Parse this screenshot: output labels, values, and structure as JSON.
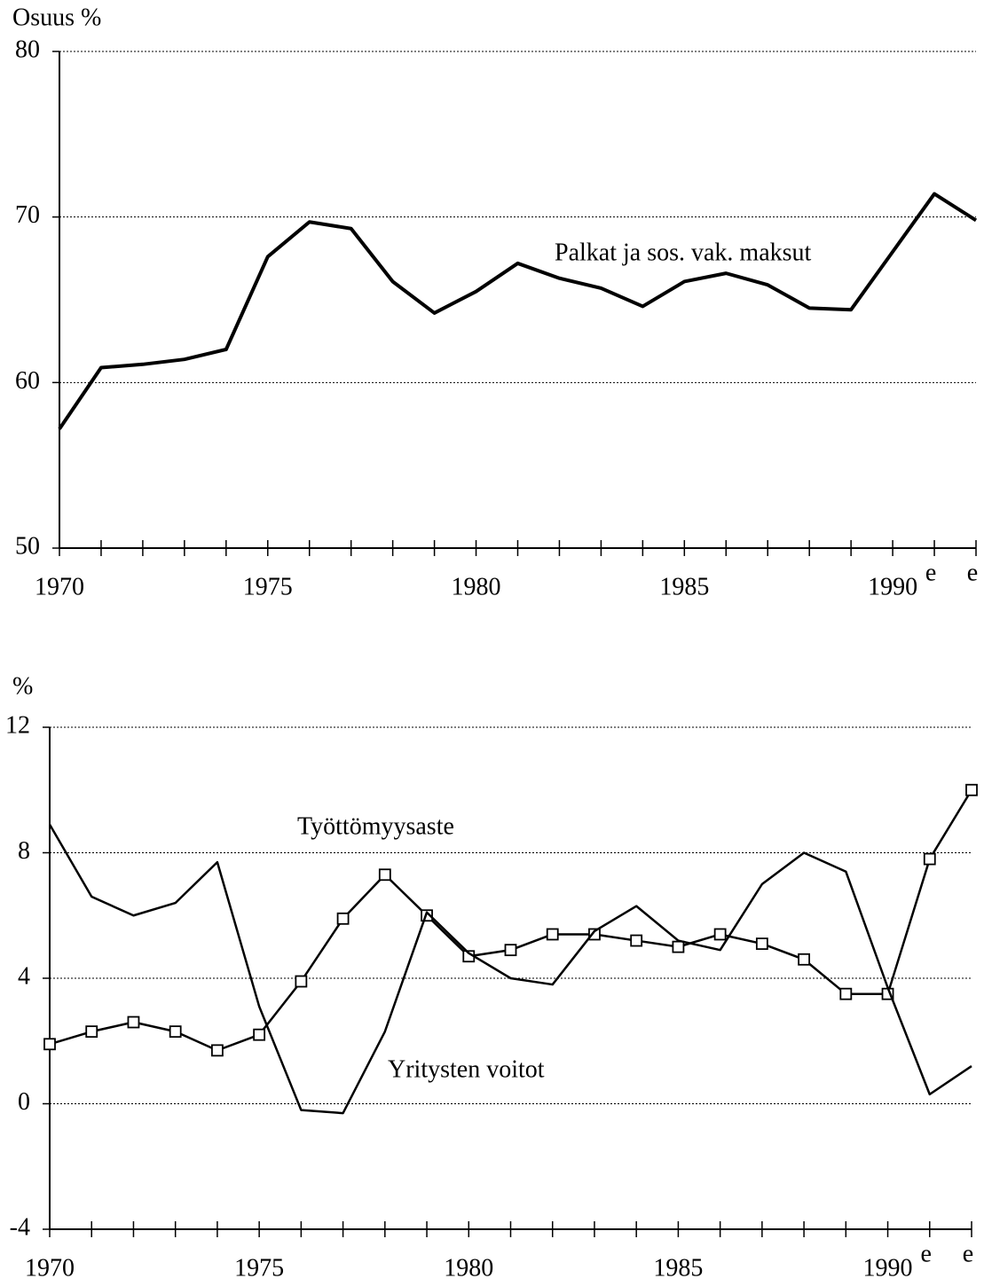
{
  "chart_data": [
    {
      "type": "line",
      "ylabel": "Osuus %",
      "x": [
        1970,
        1971,
        1972,
        1973,
        1974,
        1975,
        1976,
        1977,
        1978,
        1979,
        1980,
        1981,
        1982,
        1983,
        1984,
        1985,
        1986,
        1987,
        1988,
        1989,
        1990,
        1991,
        1992
      ],
      "series": [
        {
          "name": "Palkat ja sos. vak. maksut",
          "color": "#000000",
          "marker": "none",
          "values": [
            57.2,
            60.9,
            61.1,
            61.4,
            62.0,
            67.6,
            69.7,
            69.3,
            66.1,
            64.2,
            65.5,
            67.2,
            66.3,
            65.7,
            64.6,
            66.1,
            66.6,
            65.9,
            64.5,
            64.4,
            67.9,
            71.4,
            69.8
          ]
        }
      ],
      "xlim": [
        1970,
        1992
      ],
      "xticks": [
        1970,
        1975,
        1980,
        1985,
        1990
      ],
      "ylim": [
        50,
        80
      ],
      "yticks": [
        50,
        60,
        70,
        80
      ],
      "grid": true,
      "annotations": [
        {
          "text": "e",
          "x": 1991
        },
        {
          "text": "e",
          "x": 1992
        }
      ]
    },
    {
      "type": "line",
      "ylabel": "%",
      "x": [
        1970,
        1971,
        1972,
        1973,
        1974,
        1975,
        1976,
        1977,
        1978,
        1979,
        1980,
        1981,
        1982,
        1983,
        1984,
        1985,
        1986,
        1987,
        1988,
        1989,
        1990,
        1991,
        1992
      ],
      "series": [
        {
          "name": "Työttömyysaste",
          "color": "#000000",
          "marker": "square",
          "values": [
            1.9,
            2.3,
            2.6,
            2.3,
            1.7,
            2.2,
            3.9,
            5.9,
            7.3,
            6.0,
            4.7,
            4.9,
            5.4,
            5.4,
            5.2,
            5.0,
            5.4,
            5.1,
            4.6,
            3.5,
            3.5,
            7.8,
            10.0
          ]
        },
        {
          "name": "Yritysten voitot",
          "color": "#000000",
          "marker": "none",
          "values": [
            8.9,
            6.6,
            6.0,
            6.4,
            7.7,
            3.1,
            -0.2,
            -0.3,
            2.3,
            6.1,
            4.8,
            4.0,
            3.8,
            5.5,
            6.3,
            5.2,
            4.9,
            7.0,
            8.0,
            7.4,
            3.7,
            0.3,
            1.2
          ]
        }
      ],
      "xlim": [
        1970,
        1992
      ],
      "xticks": [
        1970,
        1975,
        1980,
        1985,
        1990
      ],
      "ylim": [
        -4,
        12
      ],
      "yticks": [
        -4,
        0,
        4,
        8,
        12
      ],
      "grid": true,
      "annotations": [
        {
          "text": "e",
          "x": 1991
        },
        {
          "text": "e",
          "x": 1992
        }
      ]
    }
  ]
}
